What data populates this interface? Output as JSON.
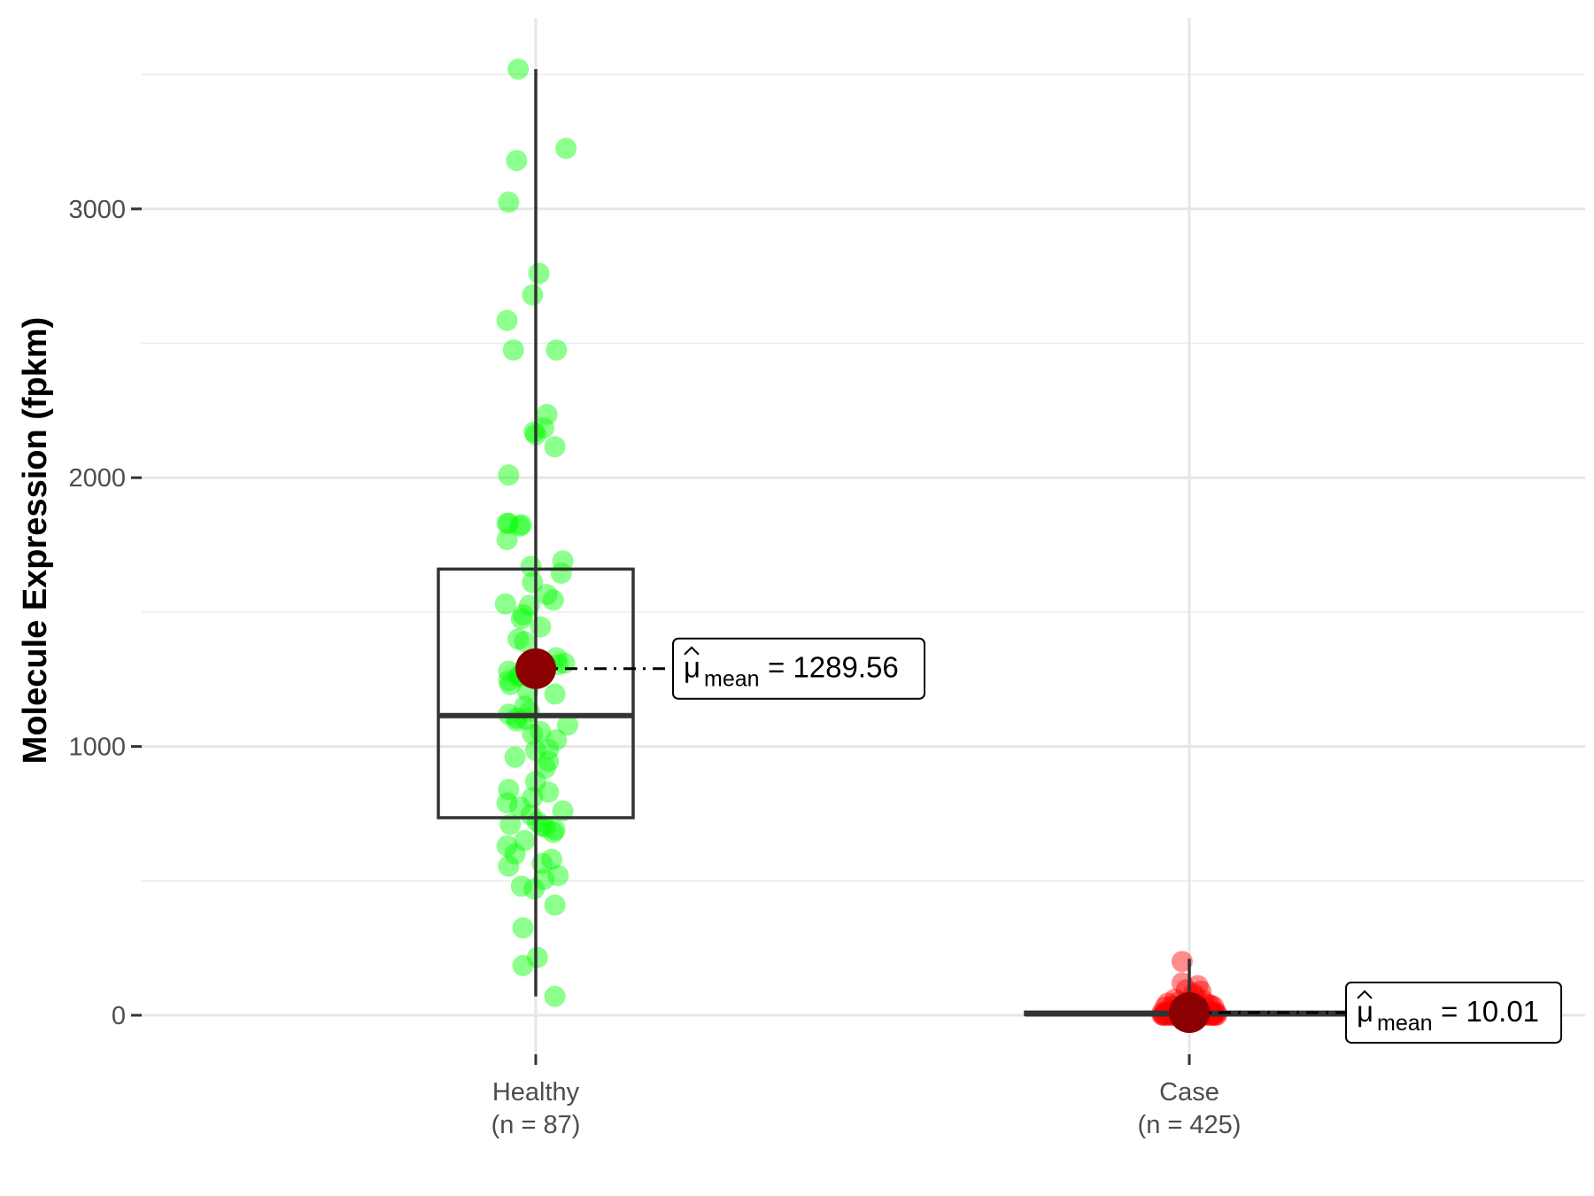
{
  "chart_data": {
    "type": "scatter",
    "subtype": "box-jitter",
    "ylabel": "Molecule Expression (fpkm)",
    "xlabel": "",
    "ylim": [
      -190,
      3550
    ],
    "yticks": [
      0,
      1000,
      2000,
      3000
    ],
    "grid": true,
    "categories": [
      {
        "name": "Healthy",
        "n_label": "(n = 87)",
        "color": "#00ff00",
        "box": {
          "min": 70,
          "q1": 735,
          "median": 1115,
          "q3": 1660,
          "max": 3520
        },
        "mean": 1289.56,
        "mean_label": "= 1289.56",
        "points": [
          3520,
          3180,
          3225,
          3025,
          2760,
          2680,
          2585,
          2475,
          2475,
          2235,
          2185,
          2170,
          2160,
          2115,
          2010,
          1830,
          1825,
          1830,
          1820,
          1770,
          1690,
          1670,
          1645,
          1610,
          1565,
          1545,
          1530,
          1525,
          1490,
          1475,
          1445,
          1400,
          1330,
          1310,
          1305,
          1280,
          1265,
          1245,
          1230,
          1205,
          1195,
          1150,
          1130,
          1120,
          1105,
          1095,
          1080,
          1055,
          1045,
          1025,
          990,
          985,
          960,
          945,
          920,
          870,
          840,
          830,
          810,
          790,
          775,
          760,
          745,
          720,
          710,
          705,
          700,
          690,
          680,
          650,
          630,
          580,
          565,
          555,
          520,
          505,
          480,
          470,
          410,
          325,
          215,
          185,
          70,
          1390,
          1260,
          1100,
          600
        ],
        "point_x_offsets": [
          -0.11,
          -0.12,
          0.19,
          -0.17,
          0.02,
          -0.02,
          -0.18,
          -0.14,
          0.13,
          0.07,
          0.05,
          -0.01,
          0.0,
          0.12,
          -0.17,
          -0.17,
          -0.09,
          -0.18,
          -0.1,
          -0.18,
          0.17,
          -0.03,
          0.16,
          -0.02,
          0.07,
          0.11,
          -0.19,
          -0.04,
          -0.08,
          -0.09,
          0.03,
          -0.11,
          0.13,
          0.18,
          0.14,
          -0.17,
          -0.1,
          -0.17,
          -0.16,
          -0.05,
          0.12,
          -0.07,
          -0.04,
          -0.17,
          -0.12,
          -0.12,
          0.2,
          0.03,
          -0.02,
          0.13,
          0.08,
          0.0,
          -0.13,
          0.08,
          0.06,
          0.0,
          -0.17,
          0.08,
          -0.02,
          -0.18,
          -0.1,
          0.17,
          -0.03,
          0.01,
          -0.16,
          0.04,
          0.06,
          0.12,
          0.11,
          -0.07,
          -0.18,
          0.1,
          0.04,
          -0.17,
          0.14,
          0.05,
          -0.09,
          -0.01,
          0.12,
          -0.08,
          0.01,
          -0.08,
          0.12,
          -0.07,
          -0.11,
          -0.06,
          -0.13
        ]
      },
      {
        "name": "Case",
        "n_label": "(n = 425)",
        "color": "#ff0000",
        "box": {
          "min": 0,
          "q1": 2,
          "median": 5,
          "q3": 12,
          "max": 210
        },
        "mean": 10.01,
        "mean_label": "= 10.01",
        "points": [
          200,
          120,
          110,
          95,
          90,
          80,
          70,
          60,
          55,
          50,
          45,
          40,
          38,
          35,
          32,
          30,
          28,
          25,
          22,
          20,
          18,
          16,
          15,
          14,
          12,
          11,
          10,
          9,
          8,
          7,
          6,
          5,
          5,
          4,
          4,
          3,
          3,
          3,
          2,
          2,
          2,
          1,
          1,
          1,
          1,
          0,
          0,
          0,
          0,
          0,
          0,
          0,
          0,
          0,
          0,
          0,
          0,
          0,
          0,
          0
        ],
        "point_x_offsets": [
          -0.05,
          -0.05,
          0.06,
          -0.02,
          0.08,
          0.03,
          0.04,
          -0.1,
          0.1,
          -0.07,
          -0.15,
          0.13,
          0.15,
          -0.12,
          0.17,
          -0.17,
          0.11,
          -0.08,
          0.02,
          -0.03,
          0.09,
          -0.13,
          0.14,
          0.05,
          -0.16,
          0.18,
          -0.19,
          0.19,
          -0.11,
          0.07,
          -0.04,
          0.12,
          -0.14,
          0.16,
          -0.18,
          0.01,
          -0.09,
          0.1,
          -0.06,
          0.17,
          -0.15,
          0.03,
          -0.19,
          0.13,
          -0.01,
          -0.17,
          0.18,
          -0.12,
          0.08,
          -0.07,
          0.15,
          -0.02,
          0.05,
          -0.18,
          0.11,
          0.19,
          -0.1,
          0.02,
          -0.14,
          0.16
        ]
      }
    ],
    "mean_symbol": "μ",
    "mean_subscript": "mean",
    "mean_color": "#8b0000"
  }
}
